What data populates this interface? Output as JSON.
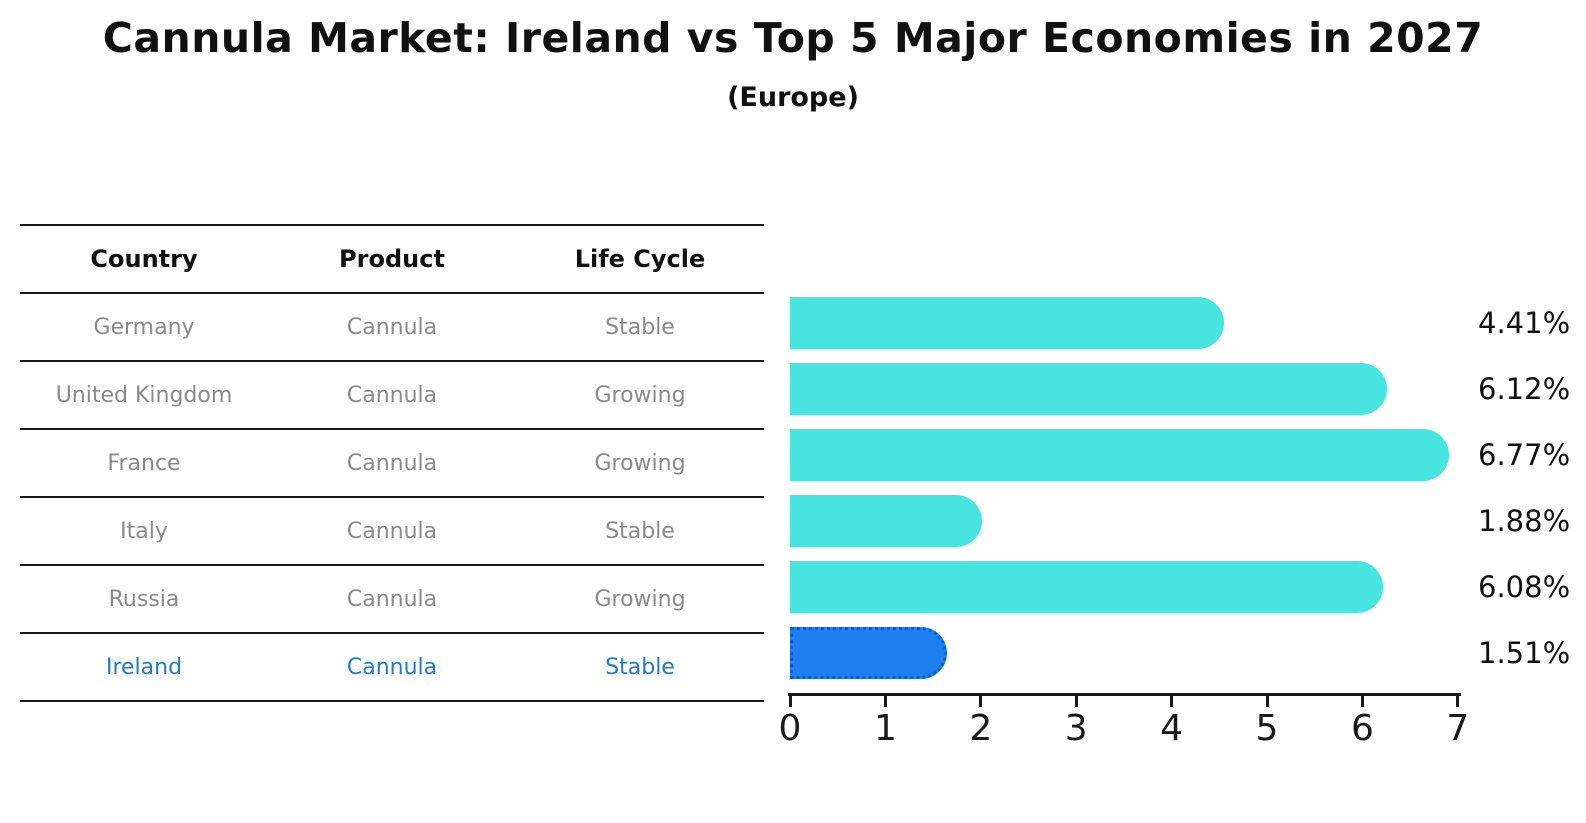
{
  "chart_data": {
    "type": "bar",
    "orientation": "horizontal",
    "title": "Cannula Market: Ireland vs Top 5 Major Economies in 2027",
    "subtitle": "(Europe)",
    "categories": [
      "Germany",
      "United Kingdom",
      "France",
      "Italy",
      "Russia",
      "Ireland"
    ],
    "values": [
      4.41,
      6.12,
      6.77,
      1.88,
      6.08,
      1.51
    ],
    "value_labels": [
      "4.41%",
      "6.12%",
      "6.77%",
      "1.88%",
      "6.08%",
      "1.51%"
    ],
    "highlight_index": 5,
    "xlim": [
      0,
      7
    ],
    "x_ticks": [
      "0",
      "1",
      "2",
      "3",
      "4",
      "5",
      "6",
      "7"
    ],
    "grid": false,
    "legend": false,
    "bar_color": "#47e4e0",
    "highlight_bar_color": "#1e80f0",
    "highlight_border_color": "#0e5bd1",
    "axis_color": "#1a1a1a",
    "label_color": "#111111"
  },
  "table": {
    "headers": [
      "Country",
      "Product",
      "Life Cycle"
    ],
    "rows": [
      [
        "Germany",
        "Cannula",
        "Stable"
      ],
      [
        "United Kingdom",
        "Cannula",
        "Growing"
      ],
      [
        "France",
        "Cannula",
        "Growing"
      ],
      [
        "Italy",
        "Cannula",
        "Stable"
      ],
      [
        "Russia",
        "Cannula",
        "Growing"
      ],
      [
        "Ireland",
        "Cannula",
        "Stable"
      ]
    ],
    "row_text_color": "#8a8a8a",
    "highlight_text_color": "#1e7ccb"
  }
}
